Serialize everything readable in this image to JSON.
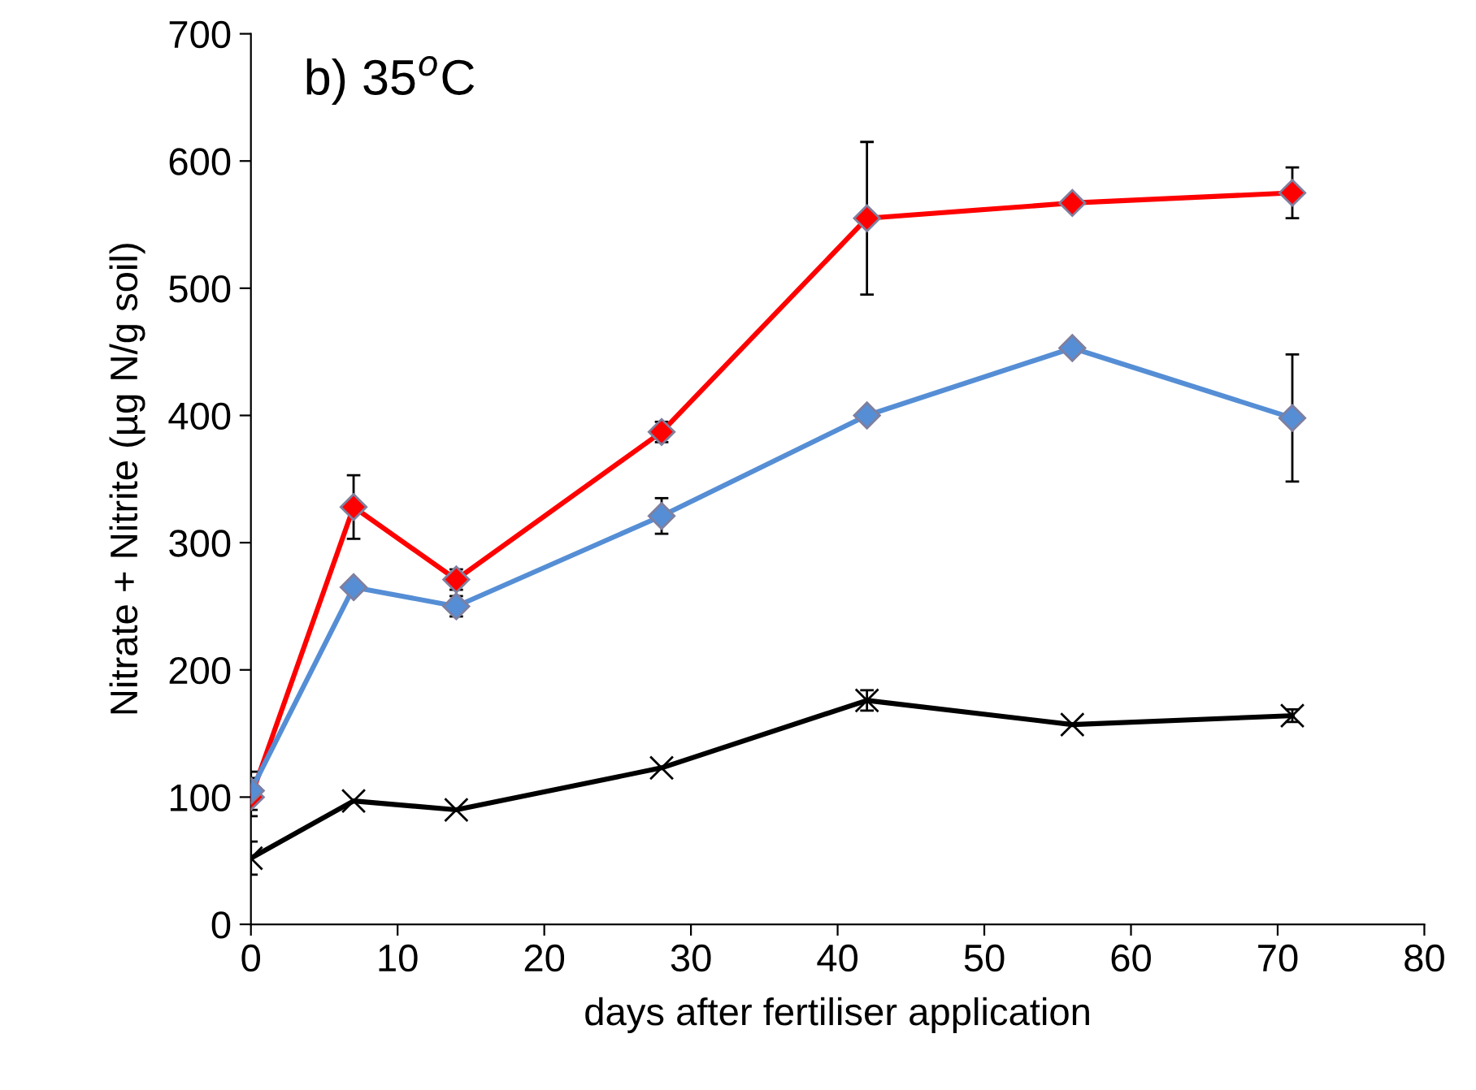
{
  "chart_data": {
    "type": "line",
    "title": "b) 35$^{o}$C",
    "xlabel": "days after fertiliser application",
    "ylabel": "Nitrate + Nitrite (µg N/g soil)",
    "x": [
      0,
      7,
      14,
      28,
      42,
      56,
      71
    ],
    "series": [
      {
        "color": "#ff0000",
        "marker": "diamond",
        "values": [
          100,
          328,
          271,
          387,
          555,
          567,
          575
        ],
        "errors": [
          15,
          25,
          8,
          8,
          60,
          null,
          20
        ]
      },
      {
        "color": "#558ed5",
        "marker": "diamond",
        "values": [
          105,
          265,
          250,
          321,
          400,
          453,
          398
        ],
        "errors": [
          15,
          null,
          8,
          14,
          null,
          null,
          50
        ]
      },
      {
        "color": "#000000",
        "marker": "cross",
        "values": [
          52,
          97,
          90,
          123,
          176,
          157,
          164
        ],
        "errors": [
          13,
          null,
          null,
          null,
          8,
          null,
          5
        ]
      }
    ],
    "xlim": [
      0,
      80
    ],
    "xticks": [
      0,
      10,
      20,
      30,
      40,
      50,
      60,
      70,
      80
    ],
    "ylim": [
      0,
      700
    ],
    "yticks": [
      0,
      100,
      200,
      300,
      400,
      500,
      600,
      700
    ],
    "grid": false,
    "legend": false
  }
}
